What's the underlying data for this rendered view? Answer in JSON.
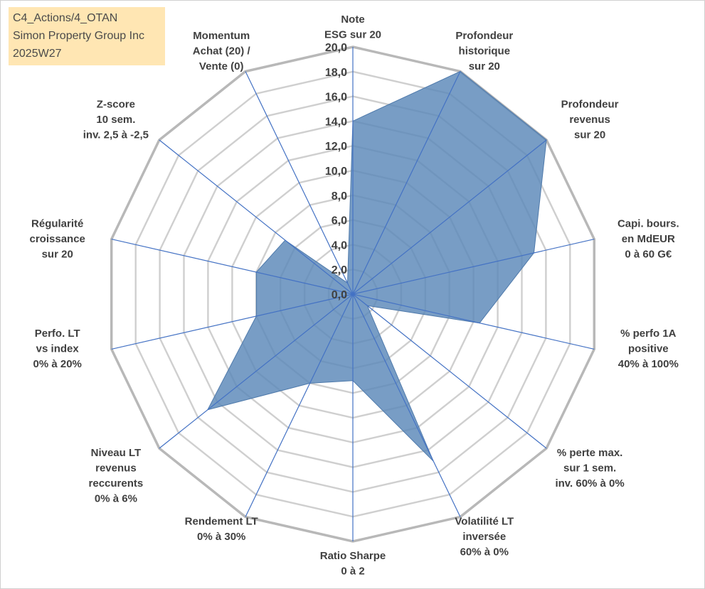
{
  "title_box": {
    "line1": "C4_Actions/4_OTAN",
    "line2": "Simon Property Group Inc",
    "line3": "2025W27",
    "background": "#ffe6b3"
  },
  "chart_data": {
    "type": "radar",
    "rlim": [
      0,
      20
    ],
    "r_ticks": [
      "0,0",
      "2,0",
      "4,0",
      "6,0",
      "8,0",
      "10,0",
      "12,0",
      "14,0",
      "16,0",
      "18,0",
      "20,0"
    ],
    "grid": true,
    "fill_color": "#5a87b8",
    "axis_line_color": "#4472c4",
    "grid_color": "#c0c0c0",
    "axes": [
      {
        "label": [
          "Note",
          "ESG sur 20"
        ],
        "value": 14
      },
      {
        "label": [
          "Profondeur",
          "historique",
          "sur 20"
        ],
        "value": 20
      },
      {
        "label": [
          "Profondeur",
          "revenus",
          "sur 20"
        ],
        "value": 20
      },
      {
        "label": [
          "Capi. bours.",
          "en MdEUR",
          "0 à 60 G€"
        ],
        "value": 15
      },
      {
        "label": [
          "% perfo 1A",
          "positive",
          "40% à 100%"
        ],
        "value": 10.5
      },
      {
        "label": [
          "% perte max.",
          "sur 1 sem.",
          "inv. 60% à 0%"
        ],
        "value": 1.5
      },
      {
        "label": [
          "Volatilité LT",
          "inversée",
          "60% à 0%"
        ],
        "value": 15
      },
      {
        "label": [
          "Ratio Sharpe",
          "0 à 2"
        ],
        "value": 7
      },
      {
        "label": [
          "Rendement LT",
          "0% à 30%"
        ],
        "value": 8
      },
      {
        "label": [
          "Niveau LT",
          "revenus",
          "reccurents",
          "0% à 6%"
        ],
        "value": 15
      },
      {
        "label": [
          "Perfo. LT",
          "vs index",
          "0% à 20%"
        ],
        "value": 8
      },
      {
        "label": [
          "Régularité",
          "croissance",
          "sur 20"
        ],
        "value": 8
      },
      {
        "label": [
          "Z-score",
          "10 sem.",
          "inv. 2,5 à -2,5"
        ],
        "value": 7
      },
      {
        "label": [
          "Momentum",
          "Achat (20) /",
          "Vente (0)"
        ],
        "value": 1
      }
    ]
  }
}
